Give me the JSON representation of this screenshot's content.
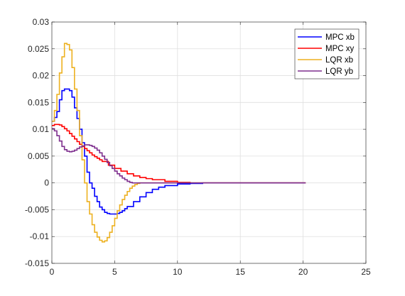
{
  "chart_data": {
    "type": "line",
    "title": "",
    "xlabel": "",
    "ylabel": "",
    "xlim": [
      0,
      25
    ],
    "ylim": [
      -0.015,
      0.03
    ],
    "grid": true,
    "legend_position": "top-right",
    "x_ticks": [
      "0",
      "5",
      "10",
      "15",
      "20",
      "25"
    ],
    "y_ticks": [
      "-0.015",
      "-0.01",
      "-0.005",
      "0",
      "0.005",
      "0.01",
      "0.015",
      "0.02",
      "0.025",
      "0.03"
    ],
    "series": [
      {
        "name": "MPC xb",
        "color": "#0000ff",
        "step": true,
        "points": [
          [
            0,
            0.0115
          ],
          [
            0.2,
            0.0122
          ],
          [
            0.4,
            0.0133
          ],
          [
            0.6,
            0.0155
          ],
          [
            0.8,
            0.0172
          ],
          [
            1.0,
            0.0175
          ],
          [
            1.2,
            0.0175
          ],
          [
            1.4,
            0.0172
          ],
          [
            1.6,
            0.016
          ],
          [
            1.8,
            0.014
          ],
          [
            2.0,
            0.012
          ],
          [
            2.2,
            0.01
          ],
          [
            2.4,
            0.0075
          ],
          [
            2.6,
            0.005
          ],
          [
            2.8,
            0.002
          ],
          [
            3.0,
            0.0
          ],
          [
            3.2,
            -0.001
          ],
          [
            3.4,
            -0.0025
          ],
          [
            3.6,
            -0.0035
          ],
          [
            3.8,
            -0.0045
          ],
          [
            4.0,
            -0.005
          ],
          [
            4.2,
            -0.0055
          ],
          [
            4.4,
            -0.0057
          ],
          [
            4.6,
            -0.0058
          ],
          [
            4.8,
            -0.0058
          ],
          [
            5.0,
            -0.0058
          ],
          [
            5.2,
            -0.0057
          ],
          [
            5.4,
            -0.0055
          ],
          [
            5.6,
            -0.0052
          ],
          [
            5.8,
            -0.0048
          ],
          [
            6.0,
            -0.0044
          ],
          [
            6.5,
            -0.0035
          ],
          [
            7.0,
            -0.0026
          ],
          [
            7.5,
            -0.0018
          ],
          [
            8.0,
            -0.0012
          ],
          [
            8.5,
            -0.0008
          ],
          [
            9.0,
            -0.0005
          ],
          [
            10.0,
            -0.0002
          ],
          [
            11.0,
            -0.0001
          ],
          [
            12.0,
            0.0
          ],
          [
            20.2,
            0.0
          ]
        ]
      },
      {
        "name": "MPC xy",
        "color": "#ff0000",
        "step": true,
        "points": [
          [
            0,
            0.0107
          ],
          [
            0.2,
            0.0109
          ],
          [
            0.4,
            0.0109
          ],
          [
            0.6,
            0.0108
          ],
          [
            0.8,
            0.0105
          ],
          [
            1.0,
            0.0101
          ],
          [
            1.2,
            0.0097
          ],
          [
            1.4,
            0.0092
          ],
          [
            1.6,
            0.0087
          ],
          [
            1.8,
            0.0082
          ],
          [
            2.0,
            0.0077
          ],
          [
            2.2,
            0.0072
          ],
          [
            2.4,
            0.0068
          ],
          [
            2.6,
            0.0064
          ],
          [
            2.8,
            0.006
          ],
          [
            3.0,
            0.0056
          ],
          [
            3.2,
            0.0052
          ],
          [
            3.4,
            0.0049
          ],
          [
            3.6,
            0.0046
          ],
          [
            3.8,
            0.0043
          ],
          [
            4.0,
            0.004
          ],
          [
            4.5,
            0.0033
          ],
          [
            5.0,
            0.0027
          ],
          [
            5.5,
            0.0022
          ],
          [
            6.0,
            0.0017
          ],
          [
            6.5,
            0.0013
          ],
          [
            7.0,
            0.001
          ],
          [
            7.5,
            0.0008
          ],
          [
            8.0,
            0.0006
          ],
          [
            9.0,
            0.0003
          ],
          [
            10.0,
            0.0001
          ],
          [
            11.0,
            0.0
          ],
          [
            20.2,
            0.0
          ]
        ]
      },
      {
        "name": "LQR xb",
        "color": "#edb120",
        "step": true,
        "points": [
          [
            0,
            0.0115
          ],
          [
            0.2,
            0.0135
          ],
          [
            0.4,
            0.0165
          ],
          [
            0.6,
            0.0205
          ],
          [
            0.8,
            0.0235
          ],
          [
            1.0,
            0.026
          ],
          [
            1.2,
            0.0258
          ],
          [
            1.4,
            0.0248
          ],
          [
            1.6,
            0.0215
          ],
          [
            1.8,
            0.0175
          ],
          [
            2.0,
            0.0135
          ],
          [
            2.2,
            0.0088
          ],
          [
            2.4,
            0.0043
          ],
          [
            2.6,
            0.0
          ],
          [
            2.8,
            -0.0035
          ],
          [
            3.0,
            -0.0058
          ],
          [
            3.2,
            -0.0078
          ],
          [
            3.4,
            -0.0092
          ],
          [
            3.6,
            -0.0101
          ],
          [
            3.8,
            -0.0107
          ],
          [
            4.0,
            -0.011
          ],
          [
            4.2,
            -0.0108
          ],
          [
            4.4,
            -0.0102
          ],
          [
            4.6,
            -0.0092
          ],
          [
            4.8,
            -0.008
          ],
          [
            5.0,
            -0.0066
          ],
          [
            5.2,
            -0.0052
          ],
          [
            5.4,
            -0.0041
          ],
          [
            5.6,
            -0.0031
          ],
          [
            5.8,
            -0.0023
          ],
          [
            6.0,
            -0.0016
          ],
          [
            6.2,
            -0.001
          ],
          [
            6.4,
            -0.0006
          ],
          [
            6.6,
            -0.0003
          ],
          [
            6.8,
            -0.0001
          ],
          [
            7.0,
            0.0
          ],
          [
            7.4,
            0.0
          ],
          [
            8.0,
            0.0
          ],
          [
            20.2,
            0.0
          ]
        ]
      },
      {
        "name": "LQR yb",
        "color": "#7e2f8e",
        "step": true,
        "points": [
          [
            0,
            0.0101
          ],
          [
            0.2,
            0.0097
          ],
          [
            0.4,
            0.0088
          ],
          [
            0.6,
            0.0078
          ],
          [
            0.8,
            0.0068
          ],
          [
            1.0,
            0.0062
          ],
          [
            1.2,
            0.0059
          ],
          [
            1.4,
            0.0058
          ],
          [
            1.6,
            0.0059
          ],
          [
            1.8,
            0.0061
          ],
          [
            2.0,
            0.0064
          ],
          [
            2.2,
            0.0067
          ],
          [
            2.4,
            0.0069
          ],
          [
            2.6,
            0.0071
          ],
          [
            2.8,
            0.0071
          ],
          [
            3.0,
            0.007
          ],
          [
            3.2,
            0.0068
          ],
          [
            3.4,
            0.0065
          ],
          [
            3.6,
            0.0061
          ],
          [
            3.8,
            0.0056
          ],
          [
            4.0,
            0.005
          ],
          [
            4.2,
            0.0044
          ],
          [
            4.4,
            0.0038
          ],
          [
            4.6,
            0.0032
          ],
          [
            4.8,
            0.0027
          ],
          [
            5.0,
            0.0022
          ],
          [
            5.2,
            0.0017
          ],
          [
            5.4,
            0.0013
          ],
          [
            5.6,
            0.0009
          ],
          [
            5.8,
            0.0006
          ],
          [
            6.0,
            0.0003
          ],
          [
            6.2,
            0.0001
          ],
          [
            6.4,
            0.0
          ],
          [
            20.2,
            0.0
          ]
        ]
      }
    ]
  }
}
